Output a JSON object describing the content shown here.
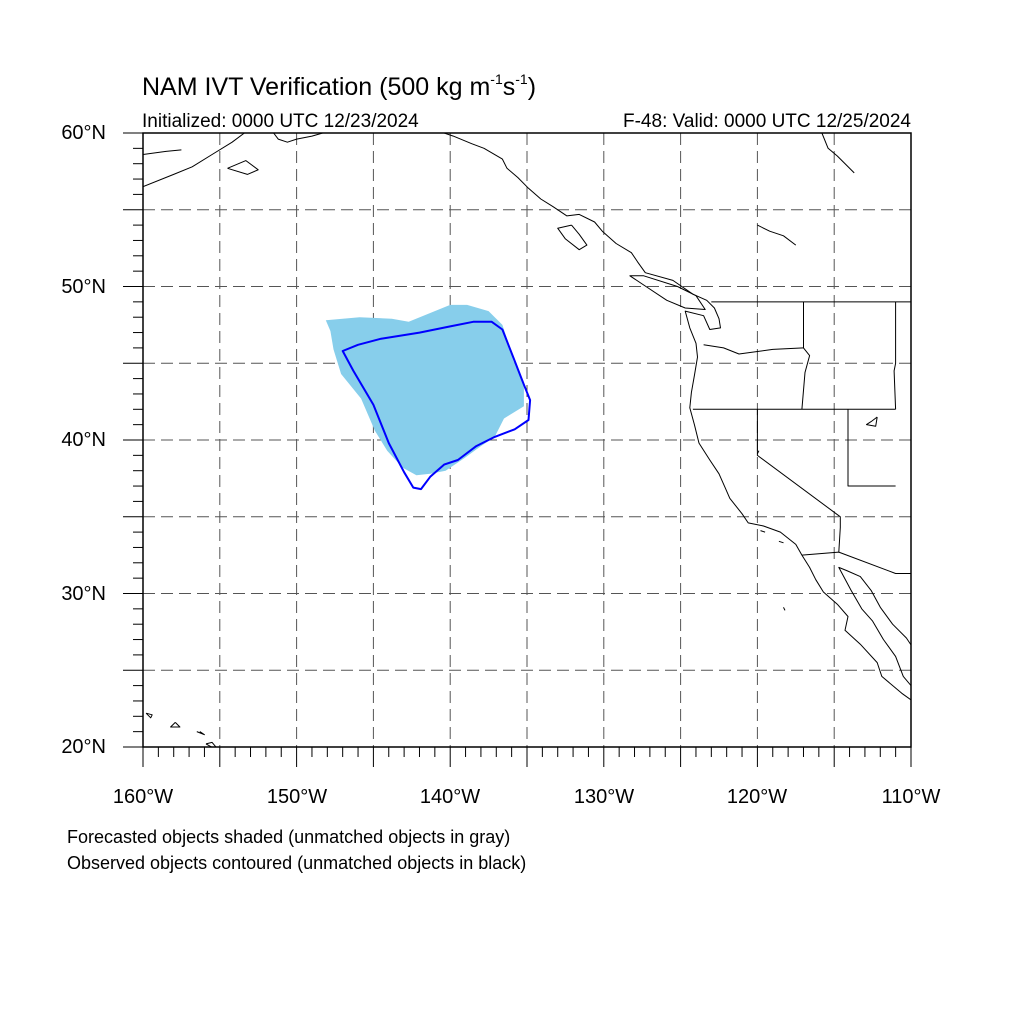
{
  "title": {
    "main": "NAM IVT Verification (500 kg m",
    "sup1": "-1",
    "mid": "s",
    "sup2": "-1",
    "close": ")"
  },
  "subtitle_left": "Initialized: 0000 UTC 12/23/2024",
  "subtitle_right": "F-48: Valid: 0000 UTC 12/25/2024",
  "map": {
    "lon_range": [
      -160,
      -110
    ],
    "lat_range": [
      20,
      60
    ],
    "grid_lons": [
      -155,
      -150,
      -145,
      -140,
      -135,
      -130,
      -125,
      -120,
      -115
    ],
    "grid_lats": [
      25,
      30,
      35,
      40,
      45,
      50,
      55
    ],
    "y_tick_labels": [
      "60°N",
      "50°N",
      "40°N",
      "30°N",
      "20°N"
    ],
    "x_tick_labels": [
      "160°W",
      "150°W",
      "140°W",
      "130°W",
      "120°W",
      "110°W"
    ],
    "forecast_object_color": "#87ceeb",
    "observed_object_color": "#0000ff",
    "coastline_color": "#000000"
  },
  "forecast_object": {
    "status": "matched",
    "outline": [
      [
        -148.1,
        47.8
      ],
      [
        -145.9,
        48.0
      ],
      [
        -143.8,
        47.9
      ],
      [
        -142.7,
        47.7
      ],
      [
        -141.0,
        48.4
      ],
      [
        -140.0,
        48.8
      ],
      [
        -138.9,
        48.8
      ],
      [
        -137.5,
        48.4
      ],
      [
        -136.6,
        47.5
      ],
      [
        -136.3,
        46.6
      ],
      [
        -135.9,
        45.2
      ],
      [
        -135.2,
        43.6
      ],
      [
        -135.2,
        42.2
      ],
      [
        -136.5,
        41.4
      ],
      [
        -137.1,
        40.2
      ],
      [
        -138.0,
        39.6
      ],
      [
        -139.1,
        38.8
      ],
      [
        -140.3,
        38.0
      ],
      [
        -141.3,
        37.8
      ],
      [
        -142.2,
        37.7
      ],
      [
        -143.1,
        38.2
      ],
      [
        -144.1,
        39.3
      ],
      [
        -144.9,
        40.6
      ],
      [
        -145.8,
        42.7
      ],
      [
        -147.1,
        44.3
      ],
      [
        -147.6,
        45.9
      ],
      [
        -147.8,
        47.1
      ]
    ]
  },
  "observed_object": {
    "status": "matched",
    "outline": [
      [
        -147.0,
        45.8
      ],
      [
        -146.0,
        46.2
      ],
      [
        -144.5,
        46.6
      ],
      [
        -142.0,
        47.0
      ],
      [
        -140.0,
        47.4
      ],
      [
        -138.5,
        47.7
      ],
      [
        -137.3,
        47.7
      ],
      [
        -136.6,
        47.2
      ],
      [
        -135.9,
        45.4
      ],
      [
        -135.2,
        43.6
      ],
      [
        -134.8,
        42.6
      ],
      [
        -134.9,
        41.3
      ],
      [
        -135.8,
        40.7
      ],
      [
        -137.1,
        40.2
      ],
      [
        -138.3,
        39.6
      ],
      [
        -139.5,
        38.7
      ],
      [
        -140.4,
        38.4
      ],
      [
        -141.3,
        37.6
      ],
      [
        -141.9,
        36.8
      ],
      [
        -142.4,
        36.9
      ],
      [
        -143.0,
        37.9
      ],
      [
        -144.0,
        39.8
      ],
      [
        -145.0,
        42.3
      ],
      [
        -146.3,
        44.5
      ]
    ]
  },
  "footnote_1": "Forecasted objects shaded (unmatched objects in gray)",
  "footnote_2": "Observed objects contoured (unmatched objects in black)"
}
